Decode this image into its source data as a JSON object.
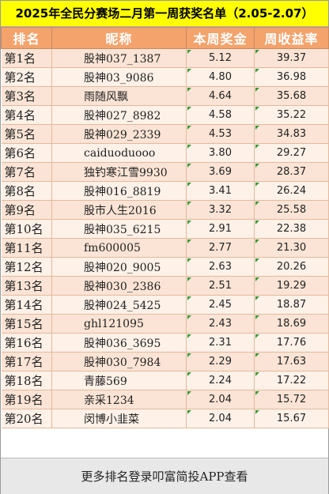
{
  "title": "2025年全民分赛场二月第一周获奖名单（2.05-2.07）",
  "headers": [
    "排名",
    "昵称",
    "本周奖金",
    "周收益率"
  ],
  "rows": [
    {
      "rank": "第1名",
      "name": "股神037_1387",
      "bonus": "5.12",
      "yield": "39.37"
    },
    {
      "rank": "第2名",
      "name": "股神03_9086",
      "bonus": "4.80",
      "yield": "36.98"
    },
    {
      "rank": "第3名",
      "name": "雨随风飘",
      "bonus": "4.64",
      "yield": "35.68"
    },
    {
      "rank": "第4名",
      "name": "股神027_8982",
      "bonus": "4.58",
      "yield": "35.22"
    },
    {
      "rank": "第5名",
      "name": "股神029_2339",
      "bonus": "4.53",
      "yield": "34.83"
    },
    {
      "rank": "第6名",
      "name": "caiduoduooo",
      "bonus": "3.80",
      "yield": "29.27"
    },
    {
      "rank": "第7名",
      "name": "独钓寒江雪9930",
      "bonus": "3.69",
      "yield": "28.37"
    },
    {
      "rank": "第8名",
      "name": "股神016_8819",
      "bonus": "3.41",
      "yield": "26.24"
    },
    {
      "rank": "第9名",
      "name": "股市人生2016",
      "bonus": "3.32",
      "yield": "25.58"
    },
    {
      "rank": "第10名",
      "name": "股神035_6215",
      "bonus": "2.91",
      "yield": "22.38"
    },
    {
      "rank": "第11名",
      "name": "fm600005",
      "bonus": "2.77",
      "yield": "21.30"
    },
    {
      "rank": "第12名",
      "name": "股神020_9005",
      "bonus": "2.63",
      "yield": "20.26"
    },
    {
      "rank": "第13名",
      "name": "股神030_2386",
      "bonus": "2.51",
      "yield": "19.29"
    },
    {
      "rank": "第14名",
      "name": "股神024_5425",
      "bonus": "2.45",
      "yield": "18.87"
    },
    {
      "rank": "第15名",
      "name": "ghl121095",
      "bonus": "2.43",
      "yield": "18.69"
    },
    {
      "rank": "第16名",
      "name": "股神036_3695",
      "bonus": "2.31",
      "yield": "17.76"
    },
    {
      "rank": "第17名",
      "name": "股神030_7984",
      "bonus": "2.29",
      "yield": "17.63"
    },
    {
      "rank": "第18名",
      "name": "青藤569",
      "bonus": "2.24",
      "yield": "17.22"
    },
    {
      "rank": "第19名",
      "name": "亲采1234",
      "bonus": "2.04",
      "yield": "15.72"
    },
    {
      "rank": "第20名",
      "name": "闵博小韭菜",
      "bonus": "2.04",
      "yield": "15.67"
    }
  ],
  "footer": "更多排名登录叩富简投APP查看",
  "colors": {
    "title_bg": "#ffff00",
    "header_bg": "#f4a36c",
    "row_odd": "#fbe4d5",
    "row_even": "#fdf1e8",
    "marker": "#3a9a3a"
  }
}
